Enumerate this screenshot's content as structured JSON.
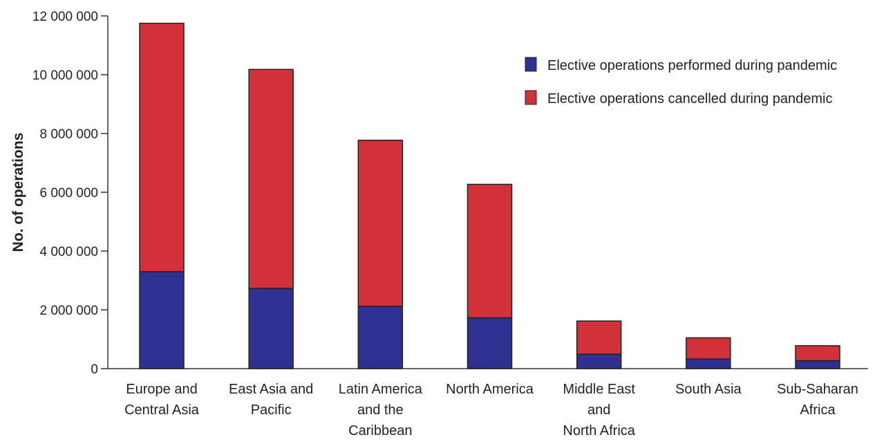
{
  "chart_data": {
    "type": "bar",
    "stacked": true,
    "categories": [
      [
        "Europe and",
        "Central Asia"
      ],
      [
        "East Asia and",
        "Pacific"
      ],
      [
        "Latin America",
        "and the",
        "Caribbean"
      ],
      [
        "North America"
      ],
      [
        "Middle East",
        "and",
        "North Africa"
      ],
      [
        "South Asia"
      ],
      [
        "Sub-Saharan",
        "Africa"
      ]
    ],
    "series": [
      {
        "name": "Elective operations performed during pandemic",
        "color": "#2e3192",
        "values": [
          3300000,
          2730000,
          2120000,
          1730000,
          490000,
          330000,
          270000
        ]
      },
      {
        "name": "Elective operations cancelled during pandemic",
        "color": "#d2313a",
        "values": [
          8450000,
          7450000,
          5650000,
          4540000,
          1130000,
          720000,
          510000
        ]
      }
    ],
    "xlabel": "",
    "ylabel": "No. of operations",
    "ylim": [
      0,
      12000000
    ],
    "yticks": [
      0,
      2000000,
      4000000,
      6000000,
      8000000,
      10000000,
      12000000
    ],
    "ytick_labels": [
      "0",
      "2 000 000",
      "4 000 000",
      "6 000 000",
      "8 000 000",
      "10 000 000",
      "12 000 000"
    ],
    "grid": false,
    "legend_position": "top-right"
  }
}
